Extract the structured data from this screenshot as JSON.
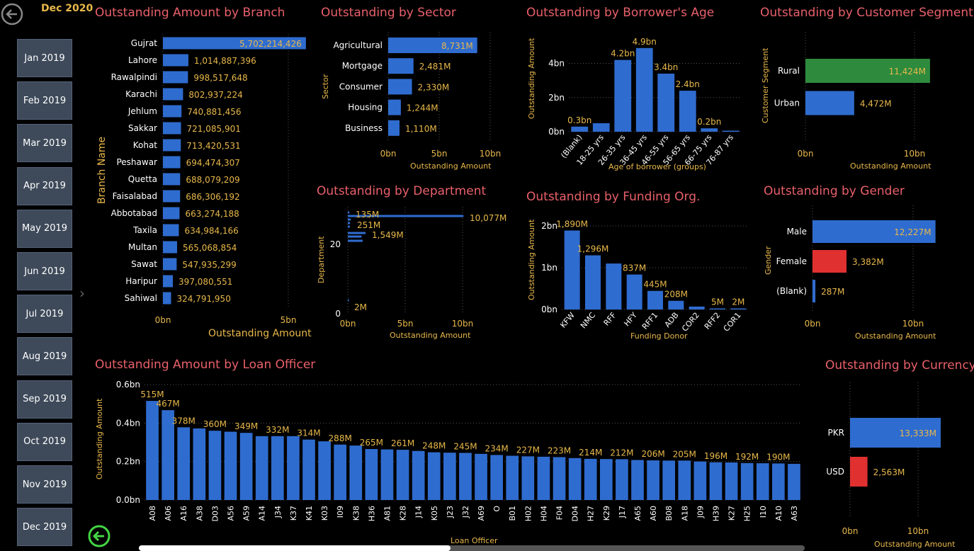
{
  "header": {
    "period": "Dec 2020",
    "back_icon": "back-arrow-icon"
  },
  "months": [
    "Jan 2019",
    "Feb 2019",
    "Mar 2019",
    "Apr 2019",
    "May 2019",
    "Jun 2019",
    "Jul 2019",
    "Aug 2019",
    "Sep 2019",
    "Oct 2019",
    "Nov 2019",
    "Dec 2019"
  ],
  "colors": {
    "bar": "#2f6ccf",
    "green": "#2e8b3e",
    "red": "#e03030",
    "title": "#e8606a",
    "label": "#e8b84a"
  },
  "charts": {
    "branch": {
      "title": "Outstanding Amount by Branch",
      "ylabel": "Branch Name",
      "xlabel": "Outstanding Amount",
      "ticks": [
        "0bn",
        "5bn"
      ],
      "categories": [
        "Gujrat",
        "Lahore",
        "Rawalpindi",
        "Karachi",
        "Jehlum",
        "Sakkar",
        "Kohat",
        "Peshawar",
        "Quetta",
        "Faisalabad",
        "Abbotabad",
        "Taxila",
        "Multan",
        "Sawat",
        "Haripur",
        "Sahiwal"
      ],
      "values": [
        5702214426,
        1014887396,
        998517648,
        802937224,
        740881456,
        721085901,
        713420531,
        694474307,
        688079209,
        686306192,
        663274188,
        634984166,
        565068854,
        547935299,
        397080551,
        324791950
      ],
      "labels": [
        "5,702,214,426",
        "1,014,887,396",
        "998,517,648",
        "802,937,224",
        "740,881,456",
        "721,085,901",
        "713,420,531",
        "694,474,307",
        "688,079,209",
        "686,306,192",
        "663,274,188",
        "634,984,166",
        "565,068,854",
        "547,935,299",
        "397,080,551",
        "324,791,950"
      ]
    },
    "sector": {
      "title": "Outstanding by Sector",
      "ylabel": "Sector",
      "xlabel": "Outstanding Amount",
      "ticks": [
        "0bn",
        "5bn",
        "10bn"
      ],
      "categories": [
        "Agricultural",
        "Mortgage",
        "Consumer",
        "Housing",
        "Business"
      ],
      "values": [
        8731,
        2481,
        2330,
        1244,
        1110
      ],
      "labels": [
        "8,731M",
        "2,481M",
        "2,330M",
        "1,244M",
        "1,110M"
      ]
    },
    "age": {
      "title": "Outstanding by Borrower's Age",
      "ylabel": "Outstanding Amount",
      "xlabel": "Age of borrower (groups)",
      "ticks": [
        "0bn",
        "2bn",
        "4bn"
      ],
      "categories": [
        "(Blank)",
        "18-25 yrs",
        "26-35 yrs",
        "36-45 yrs",
        "46-55 yrs",
        "56-65 yrs",
        "66-75 yrs",
        "76-87 yrs"
      ],
      "values": [
        0.3,
        0.5,
        4.2,
        4.9,
        3.4,
        2.4,
        0.2,
        0.05
      ],
      "labels": [
        "0.3bn",
        "",
        "4.2bn",
        "4.9bn",
        "3.4bn",
        "2.4bn",
        "0.2bn",
        ""
      ]
    },
    "segment": {
      "title": "Outstanding by Customer Segment",
      "ylabel": "Customer Segment",
      "xlabel": "Outstanding Amount",
      "ticks": [
        "0bn",
        "10bn"
      ],
      "categories": [
        "Rural",
        "Urban"
      ],
      "values": [
        11424,
        4472
      ],
      "labels": [
        "11,424M",
        "4,472M"
      ]
    },
    "department": {
      "title": "Outstanding by Department",
      "ylabel": "Department",
      "xlabel": "Outstanding Amount",
      "ticks": [
        "0bn",
        "5bn",
        "10bn"
      ],
      "yticks": [
        "20",
        "0"
      ],
      "labels": [
        "135M",
        "251M",
        "1,549M",
        "10,077M",
        "2M"
      ]
    },
    "funding": {
      "title": "Outstanding by Funding Org.",
      "ylabel": "Outstanding Amount",
      "xlabel": "Funding Donor",
      "ticks": [
        "0bn",
        "1bn",
        "2bn"
      ],
      "categories": [
        "KFW",
        "NMC",
        "RFF",
        "HFY",
        "RFF1",
        "ADB",
        "COR2",
        "RFF2",
        "COR1"
      ],
      "values": [
        1890,
        1296,
        1100,
        837,
        445,
        208,
        70,
        5,
        2
      ],
      "labels": [
        "1,890M",
        "1,296M",
        "",
        "837M",
        "445M",
        "208M",
        "",
        "5M",
        "2M"
      ]
    },
    "gender": {
      "title": "Outstanding by Gender",
      "ylabel": "Gender",
      "xlabel": "Outstanding Amount",
      "ticks": [
        "0bn",
        "10bn"
      ],
      "categories": [
        "Male",
        "Female",
        "(Blank)"
      ],
      "values": [
        12227,
        3382,
        287
      ],
      "labels": [
        "12,227M",
        "3,382M",
        "287M"
      ]
    },
    "officer": {
      "title": "Outstanding Amount by Loan Officer",
      "ylabel": "Outstanding Amount",
      "xlabel": "Loan Officer",
      "ticks": [
        "0.0bn",
        "0.2bn",
        "0.4bn",
        "0.6bn"
      ],
      "categories": [
        "A08",
        "A06",
        "A16",
        "A38",
        "D03",
        "A56",
        "A59",
        "A14",
        "J34",
        "K37",
        "K41",
        "K03",
        "I09",
        "K38",
        "H36",
        "A81",
        "K28",
        "J14",
        "K05",
        "J23",
        "J32",
        "A69",
        "O",
        "B01",
        "H02",
        "H04",
        "F04",
        "D04",
        "H27",
        "K29",
        "J17",
        "A65",
        "A60",
        "B08",
        "A18",
        "J09",
        "H39",
        "K27",
        "H25",
        "I10",
        "A10",
        "A63"
      ],
      "values": [
        515,
        467,
        378,
        372,
        360,
        355,
        349,
        332,
        332,
        332,
        314,
        305,
        288,
        283,
        265,
        263,
        261,
        255,
        248,
        246,
        245,
        240,
        234,
        230,
        227,
        225,
        223,
        218,
        214,
        213,
        212,
        208,
        206,
        205,
        205,
        200,
        196,
        195,
        192,
        191,
        190,
        188
      ],
      "labels": [
        "515M",
        "467M",
        "378M",
        "",
        "360M",
        "",
        "349M",
        "",
        "332M",
        "",
        "314M",
        "",
        "288M",
        "",
        "265M",
        "",
        "261M",
        "",
        "248M",
        "",
        "245M",
        "",
        "234M",
        "",
        "227M",
        "",
        "223M",
        "",
        "214M",
        "",
        "212M",
        "",
        "206M",
        "",
        "205M",
        "",
        "196M",
        "",
        "192M",
        "",
        "190M",
        ""
      ]
    },
    "currency": {
      "title": "Outstanding by Currency",
      "xlabel": "Outstanding Amount",
      "ticks": [
        "0bn",
        "10bn"
      ],
      "categories": [
        "PKR",
        "USD"
      ],
      "values": [
        13333,
        2563
      ],
      "labels": [
        "13,333M",
        "2,563M"
      ]
    }
  }
}
